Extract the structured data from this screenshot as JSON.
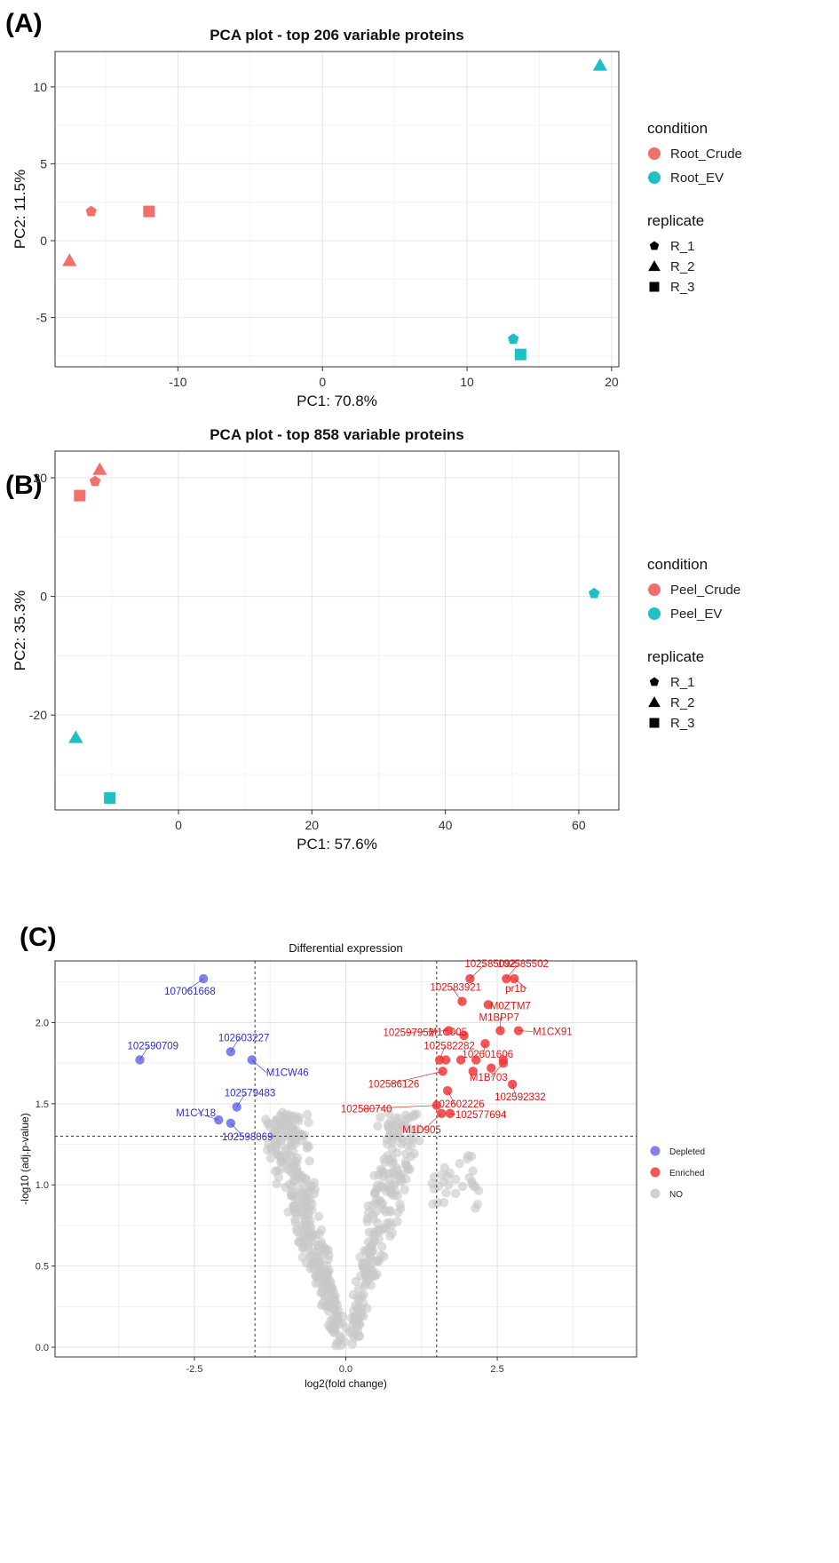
{
  "panels": {
    "a": "(A)",
    "b": "(B)",
    "c": "(C)"
  },
  "colors": {
    "crude": "#F0706A",
    "ev": "#1FBFC4",
    "depleted": "#6B6BE8",
    "enriched": "#F03A3A",
    "no": "#C8C8C8",
    "depleted_text": "#2E2ED6",
    "enriched_text": "#E01515"
  },
  "chart_data": [
    {
      "type": "scatter",
      "title": "PCA plot - top 206 variable proteins",
      "xlabel": "PC1: 70.8%",
      "ylabel": "PC2: 11.5%",
      "xlim": [
        -18.5,
        20.5
      ],
      "ylim": [
        -8.2,
        12.3
      ],
      "xticks": [
        -10,
        0,
        10,
        20
      ],
      "yticks": [
        -5,
        0,
        5,
        10
      ],
      "legend": {
        "condition_title": "condition",
        "condition_items": [
          "Root_Crude",
          "Root_EV"
        ],
        "replicate_title": "replicate",
        "replicate_items": [
          "R_1",
          "R_2",
          "R_3"
        ]
      },
      "points": [
        {
          "x": -16.0,
          "y": 1.9,
          "condition": "Root_Crude",
          "replicate": "R_1"
        },
        {
          "x": -17.5,
          "y": -1.3,
          "condition": "Root_Crude",
          "replicate": "R_2"
        },
        {
          "x": -12.0,
          "y": 1.9,
          "condition": "Root_Crude",
          "replicate": "R_3"
        },
        {
          "x": 13.2,
          "y": -6.4,
          "condition": "Root_EV",
          "replicate": "R_1"
        },
        {
          "x": 19.2,
          "y": 11.4,
          "condition": "Root_EV",
          "replicate": "R_2"
        },
        {
          "x": 13.7,
          "y": -7.4,
          "condition": "Root_EV",
          "replicate": "R_3"
        }
      ]
    },
    {
      "type": "scatter",
      "title": "PCA plot - top 858 variable proteins",
      "xlabel": "PC1: 57.6%",
      "ylabel": "PC2: 35.3%",
      "xlim": [
        -18.5,
        66
      ],
      "ylim": [
        -36,
        24.5
      ],
      "xticks": [
        0,
        20,
        40,
        60
      ],
      "yticks": [
        -20,
        0,
        20
      ],
      "legend": {
        "condition_title": "condition",
        "condition_items": [
          "Peel_Crude",
          "Peel_EV"
        ],
        "replicate_title": "replicate",
        "replicate_items": [
          "R_1",
          "R_2",
          "R_3"
        ]
      },
      "points": [
        {
          "x": -12.5,
          "y": 19.4,
          "condition": "Peel_Crude",
          "replicate": "R_1"
        },
        {
          "x": -11.8,
          "y": 21.4,
          "condition": "Peel_Crude",
          "replicate": "R_2"
        },
        {
          "x": -14.8,
          "y": 17.0,
          "condition": "Peel_Crude",
          "replicate": "R_3"
        },
        {
          "x": 62.3,
          "y": 0.5,
          "condition": "Peel_EV",
          "replicate": "R_1"
        },
        {
          "x": -15.4,
          "y": -23.8,
          "condition": "Peel_EV",
          "replicate": "R_2"
        },
        {
          "x": -10.3,
          "y": -34.0,
          "condition": "Peel_EV",
          "replicate": "R_3"
        }
      ]
    },
    {
      "type": "scatter",
      "title": "Differential expression",
      "xlabel": "log2(fold change)",
      "ylabel": "-log10 (adj.p-value)",
      "xlim": [
        -4.8,
        4.8
      ],
      "ylim": [
        -0.06,
        2.38
      ],
      "xticks": [
        -2.5,
        0.0,
        2.5
      ],
      "xtick_labels": [
        "-2.5",
        "0.0",
        "2.5"
      ],
      "yticks": [
        0.0,
        0.5,
        1.0,
        1.5,
        2.0
      ],
      "ytick_labels": [
        "0.0",
        "0.5",
        "1.0",
        "1.5",
        "2.0"
      ],
      "thresholds": {
        "x": [
          -1.5,
          1.5
        ],
        "y": 1.3
      },
      "legend": {
        "items": [
          "Depleted",
          "Enriched",
          "NO"
        ]
      },
      "depleted": [
        {
          "x": -2.35,
          "y": 2.27,
          "label": "107061668"
        },
        {
          "x": -3.4,
          "y": 1.77,
          "label": "102590709"
        },
        {
          "x": -1.9,
          "y": 1.82,
          "label": "102603227"
        },
        {
          "x": -1.55,
          "y": 1.77,
          "label": "M1CW46"
        },
        {
          "x": -1.8,
          "y": 1.48,
          "label": "102579483"
        },
        {
          "x": -2.1,
          "y": 1.4,
          "label": "M1CY18"
        },
        {
          "x": -1.9,
          "y": 1.38,
          "label": "102598069"
        }
      ],
      "enriched": [
        {
          "x": 2.05,
          "y": 2.27,
          "label": "102585092"
        },
        {
          "x": 2.65,
          "y": 2.27,
          "label": "102585502"
        },
        {
          "x": 2.78,
          "y": 2.27,
          "label": "pr1b"
        },
        {
          "x": 1.92,
          "y": 2.13,
          "label": "102583921"
        },
        {
          "x": 2.35,
          "y": 2.11,
          "label": "M0ZTM7"
        },
        {
          "x": 1.95,
          "y": 1.92,
          "label": "M1C005"
        },
        {
          "x": 2.55,
          "y": 1.95,
          "label": "M1BPP7"
        },
        {
          "x": 1.7,
          "y": 1.95,
          "label": "102597952"
        },
        {
          "x": 2.85,
          "y": 1.95,
          "label": "M1CX91"
        },
        {
          "x": 1.55,
          "y": 1.77,
          "label": "102582282"
        },
        {
          "x": 2.3,
          "y": 1.87,
          "label": "102601606"
        },
        {
          "x": 1.6,
          "y": 1.7,
          "label": "102586126"
        },
        {
          "x": 2.6,
          "y": 1.75,
          "label": "M1B703"
        },
        {
          "x": 2.75,
          "y": 1.62,
          "label": "102592332"
        },
        {
          "x": 1.68,
          "y": 1.58,
          "label": "102602226"
        },
        {
          "x": 1.5,
          "y": 1.49,
          "label": "102580740"
        },
        {
          "x": 1.72,
          "y": 1.44,
          "label": "102577694"
        },
        {
          "x": 1.58,
          "y": 1.44,
          "label": "M1D905"
        },
        {
          "x": 1.9,
          "y": 1.77
        },
        {
          "x": 2.15,
          "y": 1.77
        },
        {
          "x": 2.1,
          "y": 1.7
        },
        {
          "x": 2.4,
          "y": 1.72
        },
        {
          "x": 1.65,
          "y": 1.77
        },
        {
          "x": 2.6,
          "y": 1.77
        }
      ]
    }
  ]
}
